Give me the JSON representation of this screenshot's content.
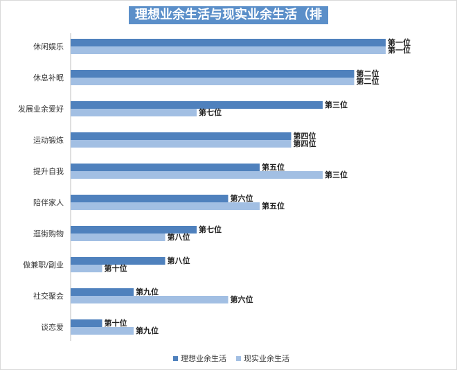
{
  "chart_data": {
    "type": "bar",
    "orientation": "horizontal",
    "title": "理想业余生活与现实业余生活（排序）",
    "categories": [
      "休闲娱乐",
      "休息补眠",
      "发展业余爱好",
      "运动锻炼",
      "提升自我",
      "陪伴家人",
      "逛街购物",
      "做兼职/副业",
      "社交聚会",
      "谈恋爱"
    ],
    "series": [
      {
        "name": "理想业余生活",
        "color": "#4f81bd",
        "values": [
          10,
          9,
          8,
          7,
          6,
          5,
          4,
          3,
          2,
          1
        ],
        "labels": [
          "第一位",
          "第二位",
          "第三位",
          "第四位",
          "第五位",
          "第六位",
          "第七位",
          "第八位",
          "第九位",
          "第十位"
        ]
      },
      {
        "name": "现实业余生活",
        "color": "#a2bfe3",
        "values": [
          10,
          9,
          4,
          7,
          8,
          6,
          3,
          1,
          5,
          2
        ],
        "labels": [
          "第一位",
          "第二位",
          "第七位",
          "第四位",
          "第三位",
          "第五位",
          "第八位",
          "第十位",
          "第六位",
          "第九位"
        ]
      }
    ],
    "xlim": [
      0,
      10
    ],
    "grid": false,
    "legend_position": "bottom"
  }
}
